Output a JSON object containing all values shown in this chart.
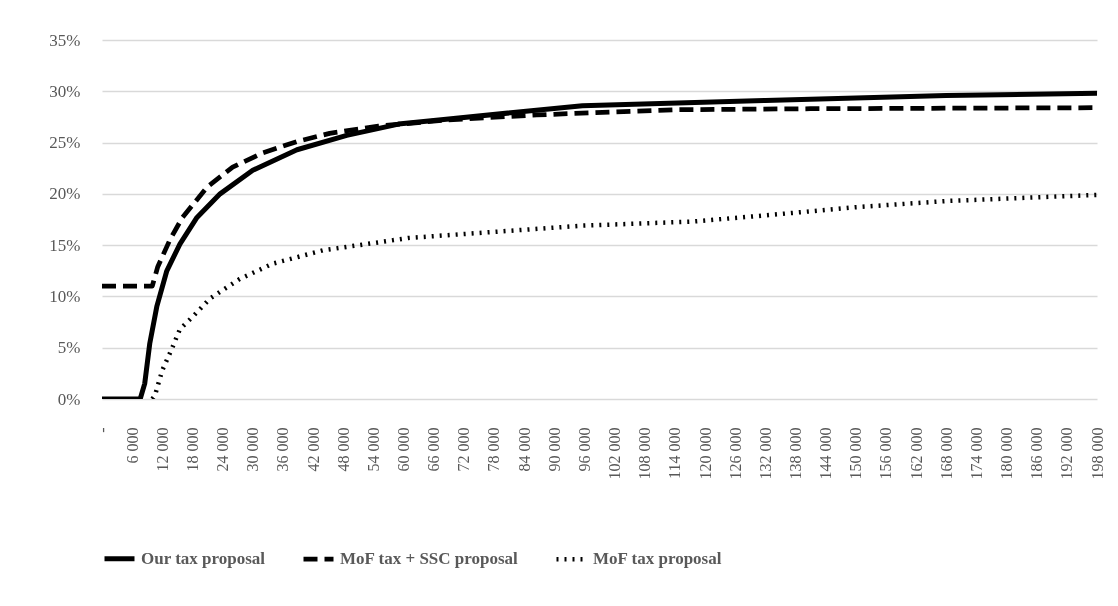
{
  "chart_data": {
    "type": "line",
    "xlim": [
      0,
      198000
    ],
    "xticks": [
      {
        "value": 0,
        "label": "-"
      },
      {
        "value": 6000,
        "label": "6 000"
      },
      {
        "value": 12000,
        "label": "12 000"
      },
      {
        "value": 18000,
        "label": "18 000"
      },
      {
        "value": 24000,
        "label": "24 000"
      },
      {
        "value": 30000,
        "label": "30 000"
      },
      {
        "value": 36000,
        "label": "36 000"
      },
      {
        "value": 42000,
        "label": "42 000"
      },
      {
        "value": 48000,
        "label": "48 000"
      },
      {
        "value": 54000,
        "label": "54 000"
      },
      {
        "value": 60000,
        "label": "60 000"
      },
      {
        "value": 66000,
        "label": "66 000"
      },
      {
        "value": 72000,
        "label": "72 000"
      },
      {
        "value": 78000,
        "label": "78 000"
      },
      {
        "value": 84000,
        "label": "84 000"
      },
      {
        "value": 90000,
        "label": "90 000"
      },
      {
        "value": 96000,
        "label": "96 000"
      },
      {
        "value": 102000,
        "label": "102 000"
      },
      {
        "value": 108000,
        "label": "108 000"
      },
      {
        "value": 114000,
        "label": "114 000"
      },
      {
        "value": 120000,
        "label": "120 000"
      },
      {
        "value": 126000,
        "label": "126 000"
      },
      {
        "value": 132000,
        "label": "132 000"
      },
      {
        "value": 138000,
        "label": "138 000"
      },
      {
        "value": 144000,
        "label": "144 000"
      },
      {
        "value": 150000,
        "label": "150 000"
      },
      {
        "value": 156000,
        "label": "156 000"
      },
      {
        "value": 162000,
        "label": "162 000"
      },
      {
        "value": 168000,
        "label": "168 000"
      },
      {
        "value": 174000,
        "label": "174 000"
      },
      {
        "value": 180000,
        "label": "180 000"
      },
      {
        "value": 186000,
        "label": "186 000"
      },
      {
        "value": 192000,
        "label": "192 000"
      },
      {
        "value": 198000,
        "label": "198 000"
      }
    ],
    "ylim": [
      0,
      35
    ],
    "yticks": [
      {
        "value": 0,
        "label": "0%"
      },
      {
        "value": 5,
        "label": "5%"
      },
      {
        "value": 10,
        "label": "10%"
      },
      {
        "value": 15,
        "label": "15%"
      },
      {
        "value": 20,
        "label": "20%"
      },
      {
        "value": 25,
        "label": "25%"
      },
      {
        "value": 30,
        "label": "30%"
      },
      {
        "value": 35,
        "label": "35%"
      }
    ],
    "grid": "y",
    "legend": "bottom",
    "marker": "none",
    "series": [
      {
        "name": "Our tax proposal",
        "color": "#000000",
        "line_style": "solid",
        "x": [
          0,
          7600,
          8500,
          9500,
          10900,
          12900,
          15500,
          18900,
          23500,
          30000,
          38800,
          48700,
          59000,
          67000,
          95600,
          132000,
          168000,
          198000
        ],
        "values": [
          0,
          0,
          1.5,
          5.4,
          9.0,
          12.5,
          15.1,
          17.7,
          20.0,
          22.3,
          24.3,
          25.7,
          26.8,
          27.2,
          28.6,
          29.1,
          29.6,
          29.8
        ]
      },
      {
        "name": "MoF tax + SSC proposal",
        "color": "#000000",
        "line_style": "dashed",
        "x": [
          0,
          10000,
          11100,
          13500,
          16000,
          21000,
          26000,
          32000,
          38800,
          45300,
          55000,
          68400,
          86500,
          114000,
          141000,
          198000
        ],
        "values": [
          11,
          11,
          12.9,
          15.5,
          17.7,
          20.7,
          22.6,
          24.0,
          25.1,
          25.9,
          26.6,
          27.2,
          27.7,
          28.2,
          28.3,
          28.4
        ]
      },
      {
        "name": "MoF tax proposal",
        "color": "#000000",
        "line_style": "dotted",
        "x": [
          10000,
          10500,
          12000,
          13900,
          15500,
          18000,
          21500,
          27400,
          34000,
          44000,
          54000,
          61000,
          95600,
          117500,
          132000,
          150000,
          168000,
          198000
        ],
        "values": [
          0,
          0.3,
          2.8,
          4.9,
          6.8,
          8.0,
          9.8,
          11.7,
          13.2,
          14.5,
          15.2,
          15.7,
          16.9,
          17.3,
          17.9,
          18.7,
          19.3,
          19.9
        ]
      }
    ]
  }
}
